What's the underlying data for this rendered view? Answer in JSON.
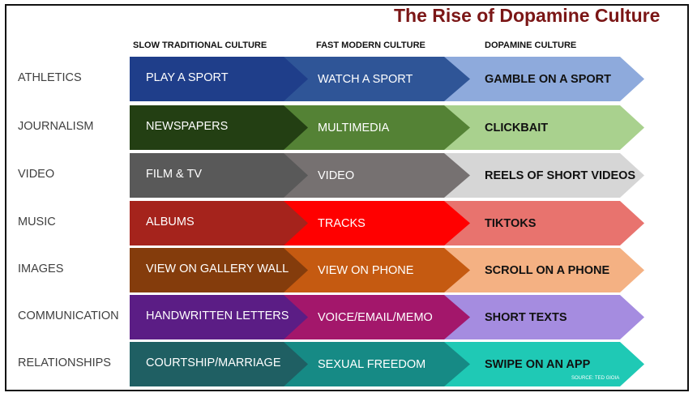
{
  "title": "The Rise of Dopamine Culture",
  "columns": [
    "SLOW TRADITIONAL CULTURE",
    "FAST MODERN CULTURE",
    "DOPAMINE CULTURE"
  ],
  "rows": [
    {
      "label": "ATHLETICS",
      "cells": [
        "PLAY A SPORT",
        "WATCH A SPORT",
        "GAMBLE ON A SPORT"
      ],
      "colors": [
        "#1f3e8a",
        "#2f5597",
        "#8eaadc"
      ]
    },
    {
      "label": "JOURNALISM",
      "cells": [
        "NEWSPAPERS",
        "MULTIMEDIA",
        "CLICKBAIT"
      ],
      "colors": [
        "#233f13",
        "#548235",
        "#a9d18e"
      ]
    },
    {
      "label": "VIDEO",
      "cells": [
        "FILM &  TV",
        "VIDEO",
        "REELS OF SHORT VIDEOS"
      ],
      "colors": [
        "#595959",
        "#767171",
        "#d6d6d6"
      ]
    },
    {
      "label": "MUSIC",
      "cells": [
        "ALBUMS",
        "TRACKS",
        "TIKTOKS"
      ],
      "colors": [
        "#a5231c",
        "#ff0000",
        "#e8736e"
      ]
    },
    {
      "label": "IMAGES",
      "cells": [
        "VIEW ON GALLERY WALL",
        "VIEW ON PHONE",
        "SCROLL ON A PHONE"
      ],
      "colors": [
        "#843c0c",
        "#c55a11",
        "#f4b183"
      ]
    },
    {
      "label": "COMMUNICATION",
      "cells": [
        "HANDWRITTEN LETTERS",
        "VOICE/EMAIL/MEMO",
        "SHORT TEXTS"
      ],
      "colors": [
        "#5b1d85",
        "#a3176b",
        "#a58ce0"
      ]
    },
    {
      "label": "RELATIONSHIPS",
      "cells": [
        "COURTSHIP/MARRIAGE",
        "SEXUAL FREEDOM",
        "SWIPE ON AN APP"
      ],
      "colors": [
        "#1f5f63",
        "#168a85",
        "#1fc9b5"
      ]
    }
  ],
  "source": "SOURCE: TED GIOIA"
}
